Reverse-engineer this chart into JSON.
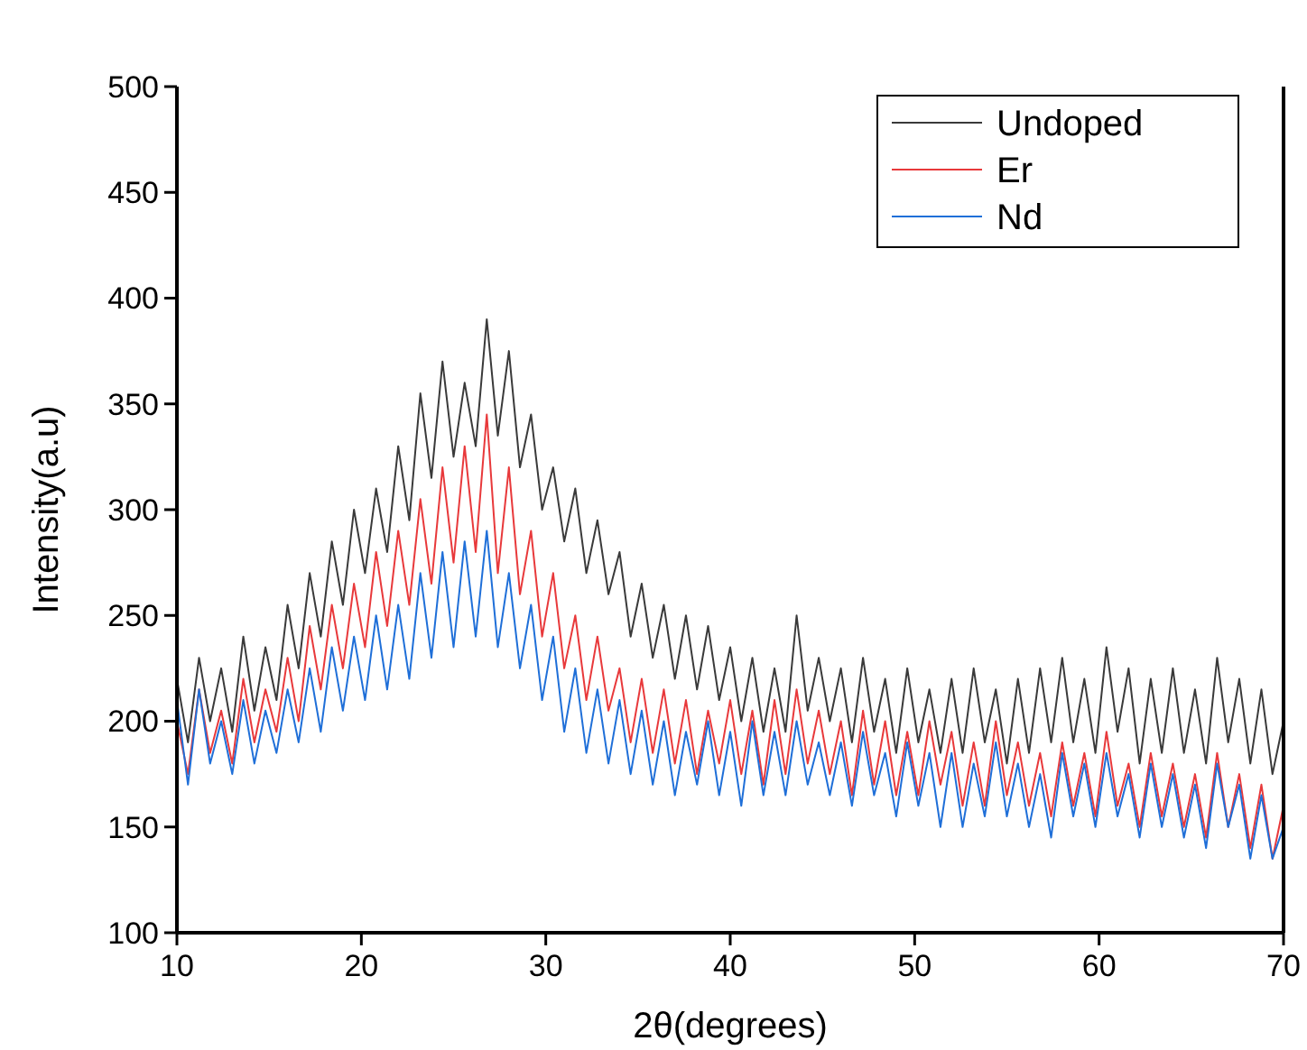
{
  "chart_data": {
    "type": "line",
    "xlabel": "2θ(degrees)",
    "ylabel": "Intensity(a.u)",
    "x": [
      10,
      10.6,
      11.2,
      11.8,
      12.4,
      13,
      13.6,
      14.2,
      14.8,
      15.4,
      16,
      16.6,
      17.2,
      17.8,
      18.4,
      19,
      19.6,
      20.2,
      20.8,
      21.4,
      22,
      22.6,
      23.2,
      23.8,
      24.4,
      25,
      25.6,
      26.2,
      26.8,
      27.4,
      28,
      28.6,
      29.2,
      29.8,
      30.4,
      31,
      31.6,
      32.2,
      32.8,
      33.4,
      34,
      34.6,
      35.2,
      35.8,
      36.4,
      37,
      37.6,
      38.2,
      38.8,
      39.4,
      40,
      40.6,
      41.2,
      41.8,
      42.4,
      43,
      43.6,
      44.2,
      44.8,
      45.4,
      46,
      46.6,
      47.2,
      47.8,
      48.4,
      49,
      49.6,
      50.2,
      50.8,
      51.4,
      52,
      52.6,
      53.2,
      53.8,
      54.4,
      55,
      55.6,
      56.2,
      56.8,
      57.4,
      58,
      58.6,
      59.2,
      59.8,
      60.4,
      61,
      61.6,
      62.2,
      62.8,
      63.4,
      64,
      64.6,
      65.2,
      65.8,
      66.4,
      67,
      67.6,
      68.2,
      68.8,
      69.4,
      70
    ],
    "xlim": [
      10,
      70
    ],
    "xticks": [
      10,
      20,
      30,
      40,
      50,
      60,
      70
    ],
    "ylim": [
      100,
      500
    ],
    "yticks": [
      100,
      150,
      200,
      250,
      300,
      350,
      400,
      450,
      500
    ],
    "legend": "top right",
    "line_style": "solid",
    "marker": "none",
    "series": [
      {
        "name": "Undoped",
        "color": "#3a3a3a",
        "values": [
          220,
          190,
          230,
          200,
          225,
          195,
          240,
          205,
          235,
          210,
          255,
          225,
          270,
          240,
          285,
          255,
          300,
          270,
          310,
          280,
          330,
          295,
          355,
          315,
          370,
          325,
          360,
          330,
          390,
          335,
          375,
          320,
          345,
          300,
          320,
          285,
          310,
          270,
          295,
          260,
          280,
          240,
          265,
          230,
          255,
          220,
          250,
          215,
          245,
          210,
          235,
          200,
          230,
          195,
          225,
          195,
          250,
          205,
          230,
          200,
          225,
          190,
          230,
          195,
          220,
          185,
          225,
          190,
          215,
          185,
          220,
          185,
          225,
          190,
          215,
          180,
          220,
          185,
          225,
          190,
          230,
          190,
          220,
          185,
          235,
          195,
          225,
          180,
          220,
          185,
          225,
          185,
          215,
          180,
          230,
          190,
          220,
          180,
          215,
          175,
          200
        ]
      },
      {
        "name": "Er",
        "color": "#e8393b",
        "values": [
          200,
          175,
          215,
          185,
          205,
          180,
          220,
          190,
          215,
          195,
          230,
          200,
          245,
          215,
          255,
          225,
          265,
          235,
          280,
          245,
          290,
          255,
          305,
          265,
          320,
          275,
          330,
          280,
          345,
          270,
          320,
          260,
          290,
          240,
          270,
          225,
          250,
          210,
          240,
          205,
          225,
          190,
          220,
          185,
          215,
          180,
          210,
          175,
          205,
          180,
          210,
          175,
          205,
          170,
          210,
          175,
          215,
          180,
          205,
          175,
          200,
          165,
          205,
          170,
          200,
          165,
          195,
          165,
          200,
          170,
          195,
          160,
          190,
          160,
          200,
          165,
          190,
          160,
          185,
          155,
          190,
          160,
          185,
          155,
          195,
          160,
          180,
          150,
          185,
          155,
          180,
          150,
          175,
          145,
          185,
          150,
          175,
          140,
          170,
          135,
          160
        ]
      },
      {
        "name": "Nd",
        "color": "#1f6fd8",
        "values": [
          210,
          170,
          215,
          180,
          200,
          175,
          210,
          180,
          205,
          185,
          215,
          190,
          225,
          195,
          235,
          205,
          240,
          210,
          250,
          215,
          255,
          220,
          270,
          230,
          280,
          235,
          285,
          240,
          290,
          235,
          270,
          225,
          255,
          210,
          240,
          195,
          225,
          185,
          215,
          180,
          210,
          175,
          205,
          170,
          200,
          165,
          195,
          170,
          200,
          165,
          195,
          160,
          200,
          165,
          195,
          165,
          200,
          170,
          190,
          165,
          190,
          160,
          195,
          165,
          185,
          155,
          190,
          160,
          185,
          150,
          185,
          150,
          180,
          155,
          190,
          155,
          180,
          150,
          175,
          145,
          185,
          155,
          180,
          150,
          185,
          155,
          175,
          145,
          180,
          150,
          175,
          145,
          170,
          140,
          180,
          150,
          170,
          135,
          165,
          135,
          150
        ]
      }
    ]
  }
}
